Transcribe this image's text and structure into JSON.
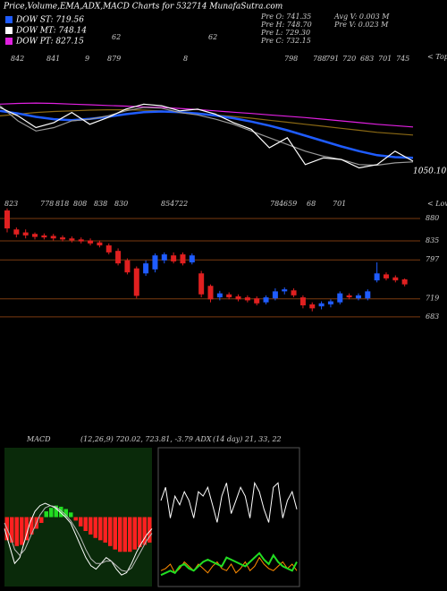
{
  "header": {
    "title": "Price,Volume,EMA,ADX,MACD Charts for 532714 MunafaSutra.com",
    "legend": [
      {
        "text": "DOW ST: 719.56",
        "color": "#1f5cff"
      },
      {
        "text": "DOW MT: 748.14",
        "color": "#ffffff"
      },
      {
        "text": "DOW PT: 827.15",
        "color": "#e020e0"
      }
    ],
    "stats": [
      "Pre  O: 741.35",
      "Pre  H: 748.70",
      "Pre  L: 729.30",
      "Pre  C: 732.15",
      "Avg  V: 0.003 M",
      "Pre  V: 0.023 M"
    ]
  },
  "chart_data": [
    {
      "type": "line",
      "ylim": [
        1000,
        1400
      ],
      "yticks": [
        {
          "value": 1050.1,
          "label": "1050.10"
        }
      ],
      "annotations": [
        "842",
        "841",
        "9",
        "879",
        "8",
        "798",
        "788",
        "791",
        "720",
        "683",
        "701",
        "745"
      ],
      "marker_labels": [
        "62",
        "62"
      ],
      "side_label": "< Tops",
      "series": [
        {
          "name": "PT",
          "color": "#e020e0",
          "values": [
            1250,
            1252,
            1253,
            1252,
            1250,
            1248,
            1246,
            1244,
            1242,
            1240,
            1237,
            1234,
            1230,
            1226,
            1222,
            1218,
            1214,
            1210,
            1205,
            1200,
            1195,
            1190,
            1186,
            1182
          ]
        },
        {
          "name": "LT",
          "color": "#8b6914",
          "values": [
            1215,
            1220,
            1225,
            1228,
            1230,
            1232,
            1233,
            1233,
            1232,
            1230,
            1226,
            1222,
            1218,
            1213,
            1208,
            1202,
            1196,
            1190,
            1184,
            1178,
            1172,
            1166,
            1162,
            1158
          ]
        },
        {
          "name": "ST",
          "color": "#1f5cff",
          "values": [
            1230,
            1222,
            1212,
            1205,
            1202,
            1206,
            1212,
            1220,
            1226,
            1228,
            1226,
            1222,
            1216,
            1208,
            1198,
            1186,
            1172,
            1156,
            1140,
            1124,
            1110,
            1098,
            1092,
            1090
          ]
        },
        {
          "name": "MT",
          "color": "#999999",
          "values": [
            1245,
            1200,
            1170,
            1180,
            1200,
            1205,
            1215,
            1230,
            1240,
            1238,
            1225,
            1218,
            1205,
            1190,
            1170,
            1150,
            1130,
            1110,
            1095,
            1085,
            1070,
            1068,
            1075,
            1078
          ]
        },
        {
          "name": "Price",
          "color": "#ffffff",
          "values": [
            1240,
            1215,
            1180,
            1195,
            1225,
            1190,
            1210,
            1235,
            1250,
            1245,
            1230,
            1235,
            1220,
            1195,
            1175,
            1120,
            1150,
            1070,
            1090,
            1085,
            1060,
            1070,
            1110,
            1080
          ]
        }
      ]
    },
    {
      "type": "candlestick",
      "ylim": [
        654,
        905
      ],
      "yticks": [
        880,
        835,
        797,
        719,
        683
      ],
      "up_color": "#1f5cff",
      "down_color": "#e02020",
      "grid_color": "#7a3a10",
      "annotations": [
        "823",
        "778",
        "818",
        "808",
        "838",
        "830",
        "854",
        "722",
        "784",
        "659",
        "68",
        "701"
      ],
      "side_label": "< Lows",
      "open": [
        896,
        858,
        852,
        849,
        846,
        845,
        842,
        840,
        838,
        836,
        832,
        826,
        815,
        796,
        780,
        770,
        778,
        796,
        806,
        808,
        792,
        770,
        745,
        722,
        728,
        724,
        722,
        720,
        712,
        720,
        734,
        736,
        722,
        708,
        704,
        708,
        712,
        726,
        720,
        720,
        756,
        768,
        762,
        758
      ],
      "high": [
        900,
        862,
        858,
        852,
        850,
        849,
        846,
        844,
        842,
        840,
        836,
        830,
        820,
        800,
        784,
        796,
        810,
        812,
        812,
        812,
        810,
        775,
        748,
        735,
        732,
        728,
        726,
        724,
        726,
        740,
        742,
        740,
        726,
        712,
        714,
        718,
        734,
        730,
        730,
        738,
        792,
        772,
        766,
        760
      ],
      "low": [
        852,
        842,
        840,
        838,
        838,
        836,
        834,
        832,
        830,
        826,
        822,
        808,
        786,
        768,
        720,
        765,
        772,
        790,
        790,
        786,
        788,
        722,
        712,
        716,
        718,
        714,
        712,
        706,
        708,
        716,
        728,
        722,
        700,
        694,
        698,
        702,
        708,
        718,
        716,
        716,
        752,
        756,
        752,
        744
      ],
      "close": [
        860,
        848,
        846,
        843,
        842,
        840,
        838,
        836,
        834,
        830,
        826,
        812,
        790,
        772,
        725,
        790,
        806,
        808,
        794,
        790,
        806,
        728,
        718,
        730,
        722,
        718,
        716,
        710,
        722,
        734,
        738,
        726,
        706,
        700,
        710,
        714,
        730,
        722,
        726,
        734,
        770,
        760,
        756,
        748
      ]
    },
    {
      "type": "macd",
      "title": "MACD",
      "subtitle": "(12,26,9) 720.02, 723.81, -3.79 ADX",
      "ylim": [
        -60,
        60
      ],
      "histogram": [
        -20,
        -22,
        -25,
        -24,
        -20,
        -15,
        -10,
        -5,
        5,
        8,
        10,
        9,
        7,
        4,
        -3,
        -8,
        -12,
        -15,
        -18,
        -20,
        -22,
        -25,
        -28,
        -30,
        -30,
        -30,
        -28,
        -26,
        -24,
        -22
      ],
      "series": [
        {
          "name": "MACD",
          "color": "#ffffff",
          "values": [
            -10,
            -25,
            -40,
            -35,
            -20,
            -5,
            5,
            10,
            12,
            10,
            8,
            4,
            0,
            -5,
            -15,
            -25,
            -35,
            -42,
            -45,
            -40,
            -35,
            -38,
            -45,
            -50,
            -48,
            -40,
            -30,
            -22,
            -15,
            -10
          ]
        },
        {
          "name": "Signal",
          "color": "#bbbbbb",
          "values": [
            -5,
            -15,
            -28,
            -33,
            -28,
            -18,
            -8,
            2,
            8,
            10,
            9,
            6,
            2,
            -3,
            -10,
            -18,
            -28,
            -36,
            -40,
            -40,
            -38,
            -38,
            -42,
            -46,
            -47,
            -44,
            -36,
            -28,
            -20,
            -14
          ]
        }
      ]
    },
    {
      "type": "line",
      "subtitle": "(14 day) 21, 33, 22",
      "ylim": [
        0,
        60
      ],
      "series": [
        {
          "name": "ADX",
          "color": "#ffffff",
          "values": [
            38,
            44,
            30,
            40,
            36,
            42,
            38,
            30,
            42,
            40,
            44,
            36,
            28,
            40,
            46,
            32,
            38,
            44,
            40,
            30,
            46,
            42,
            34,
            28,
            44,
            46,
            30,
            38,
            42,
            34
          ]
        },
        {
          "name": "DI+",
          "color": "#ff8c00",
          "values": [
            6,
            7,
            9,
            5,
            7,
            10,
            8,
            6,
            9,
            7,
            5,
            8,
            10,
            7,
            6,
            9,
            5,
            7,
            10,
            6,
            8,
            12,
            9,
            7,
            6,
            8,
            10,
            7,
            9,
            6
          ]
        },
        {
          "name": "DI-",
          "color": "#22dd22",
          "values": [
            4,
            5,
            6,
            5,
            8,
            9,
            7,
            6,
            8,
            10,
            11,
            10,
            9,
            8,
            12,
            11,
            10,
            9,
            8,
            10,
            12,
            14,
            11,
            9,
            13,
            10,
            8,
            7,
            6,
            10
          ]
        }
      ]
    }
  ]
}
